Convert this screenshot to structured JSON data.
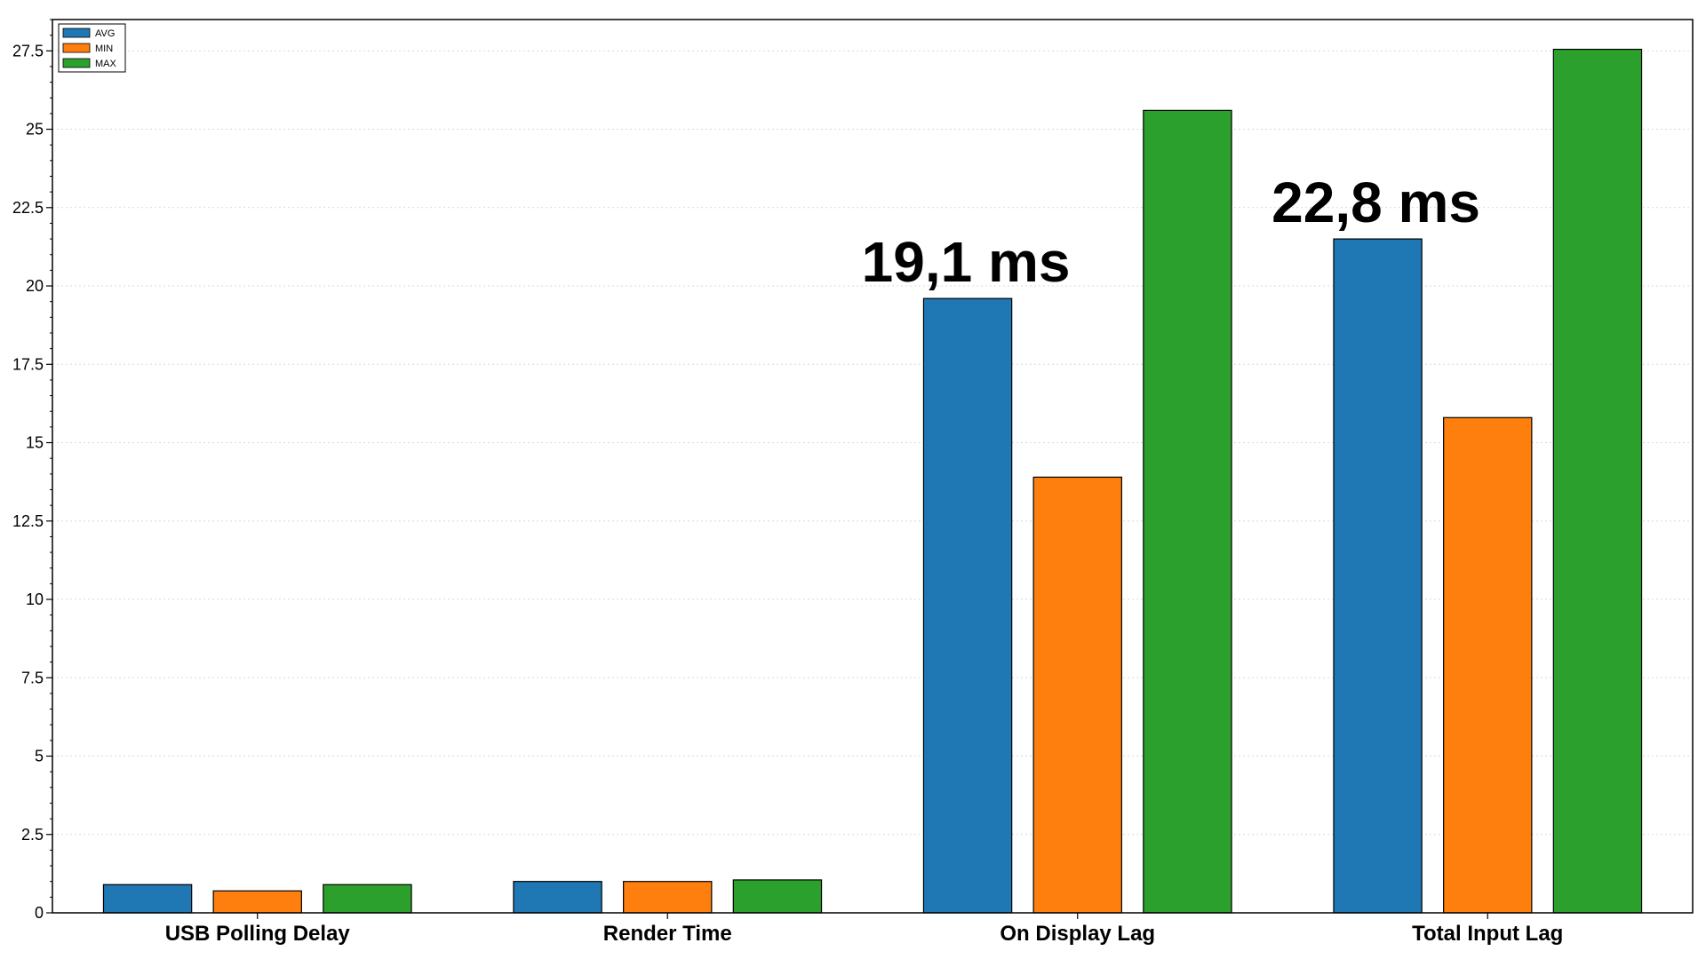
{
  "chart_data": {
    "type": "bar",
    "categories": [
      "USB Polling Delay",
      "Render Time",
      "On Display Lag",
      "Total Input Lag"
    ],
    "series": [
      {
        "name": "AVG",
        "color": "#1f77b4",
        "values": [
          0.9,
          1.0,
          19.6,
          21.5
        ]
      },
      {
        "name": "MIN",
        "color": "#ff7f0e",
        "values": [
          0.7,
          1.0,
          13.9,
          15.8
        ]
      },
      {
        "name": "MAX",
        "color": "#2ca02c",
        "values": [
          0.9,
          1.05,
          25.6,
          27.55
        ]
      }
    ],
    "ylim": [
      0,
      28.5
    ],
    "yticks": [
      0,
      2.5,
      5,
      7.5,
      10,
      12.5,
      15,
      17.5,
      20,
      22.5,
      25,
      27.5
    ],
    "ytick_labels": [
      "0",
      "2.5",
      "5",
      "7.5",
      "10",
      "12.5",
      "15",
      "17.5",
      "20",
      "22.5",
      "25",
      "27.5"
    ],
    "grid": true,
    "legend_position": "top-left",
    "title": "",
    "xlabel": "",
    "ylabel": "",
    "annotations": [
      {
        "text": "19,1 ms",
        "category_index": 2
      },
      {
        "text": "22,8 ms",
        "category_index": 3
      }
    ]
  }
}
